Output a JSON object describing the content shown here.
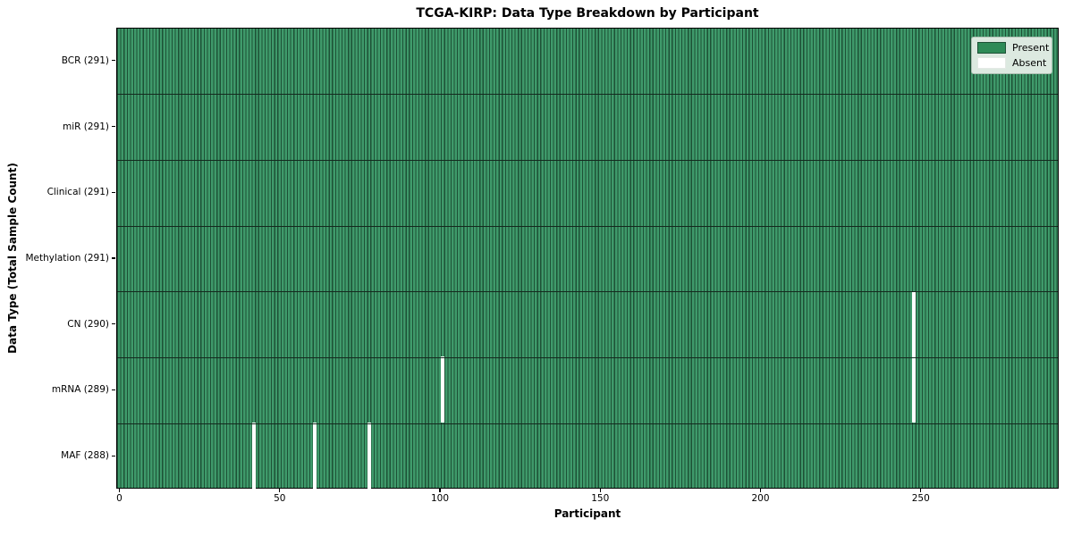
{
  "chart_data": {
    "type": "heatmap",
    "title": "TCGA-KIRP: Data Type Breakdown by Participant",
    "xlabel": "Participant",
    "ylabel": "Data Type (Total Sample Count)",
    "x_ticks": [
      0,
      50,
      100,
      150,
      200,
      250
    ],
    "x_range": [
      -1,
      293
    ],
    "n_participants": 291,
    "grid": "off",
    "rows": [
      {
        "label": "BCR (291)",
        "data_type": "BCR",
        "present_count": 291,
        "absent_participants": []
      },
      {
        "label": "miR (291)",
        "data_type": "miR",
        "present_count": 291,
        "absent_participants": []
      },
      {
        "label": "Clinical (291)",
        "data_type": "Clinical",
        "present_count": 291,
        "absent_participants": []
      },
      {
        "label": "Methylation (291)",
        "data_type": "Methylation",
        "present_count": 291,
        "absent_participants": []
      },
      {
        "label": "CN (290)",
        "data_type": "CN",
        "present_count": 290,
        "absent_participants": [
          248
        ]
      },
      {
        "label": "mRNA (289)",
        "data_type": "mRNA",
        "present_count": 289,
        "absent_participants": [
          101,
          248
        ]
      },
      {
        "label": "MAF (288)",
        "data_type": "MAF",
        "present_count": 288,
        "absent_participants": [
          42,
          61,
          78
        ]
      }
    ],
    "legend": {
      "position": "upper right",
      "entries": [
        {
          "label": "Present",
          "color": "#2e8b57"
        },
        {
          "label": "Absent",
          "color": "#ffffff"
        }
      ]
    },
    "colors": {
      "present_fill": "#3f9a6b",
      "bar_edge": "#1d5136",
      "absent": "#ffffff",
      "row_divider": "#14291e",
      "axis": "#000000",
      "legend_bg": "#dce9e0",
      "legend_border": "#adc0b3",
      "figure_bg": "#ffffff"
    }
  }
}
